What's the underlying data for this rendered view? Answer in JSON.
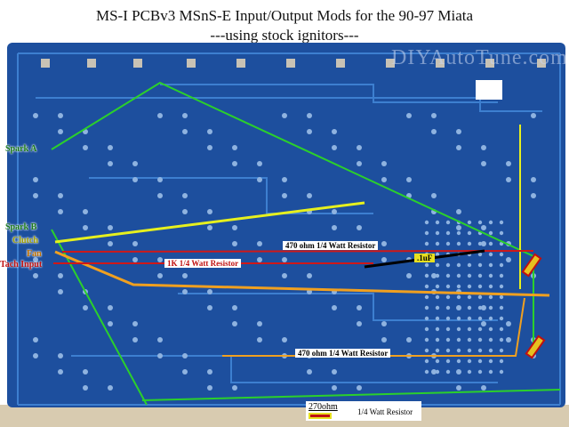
{
  "title": "MS-I PCBv3 MSnS-E Input/Output Mods for the 90-97 Miata",
  "subtitle": "---using stock ignitors---",
  "watermark": "DIYAutoTune.com",
  "pins": {
    "spark_a": "Spark A",
    "spark_b": "Spark B",
    "clutch": "Clutch",
    "fan": "Fan",
    "tach_input": "Tach Input"
  },
  "annotations": {
    "resistor_470_top": "470 ohm 1/4 Watt Resistor",
    "resistor_1k": "1K 1/4 Watt Resistor",
    "capacitor": ".1uF",
    "resistor_470_bottom": "470 ohm 1/4 Watt Resistor"
  },
  "legend": {
    "value": "270ohm",
    "description": "1/4 Watt Resistor"
  },
  "colors": {
    "board": "#1d4f9e",
    "spark": "#2bd02b",
    "clutch": "#e6f01e",
    "fan": "#f0a020",
    "tach": "#d01818",
    "capacitor": "#000000"
  }
}
